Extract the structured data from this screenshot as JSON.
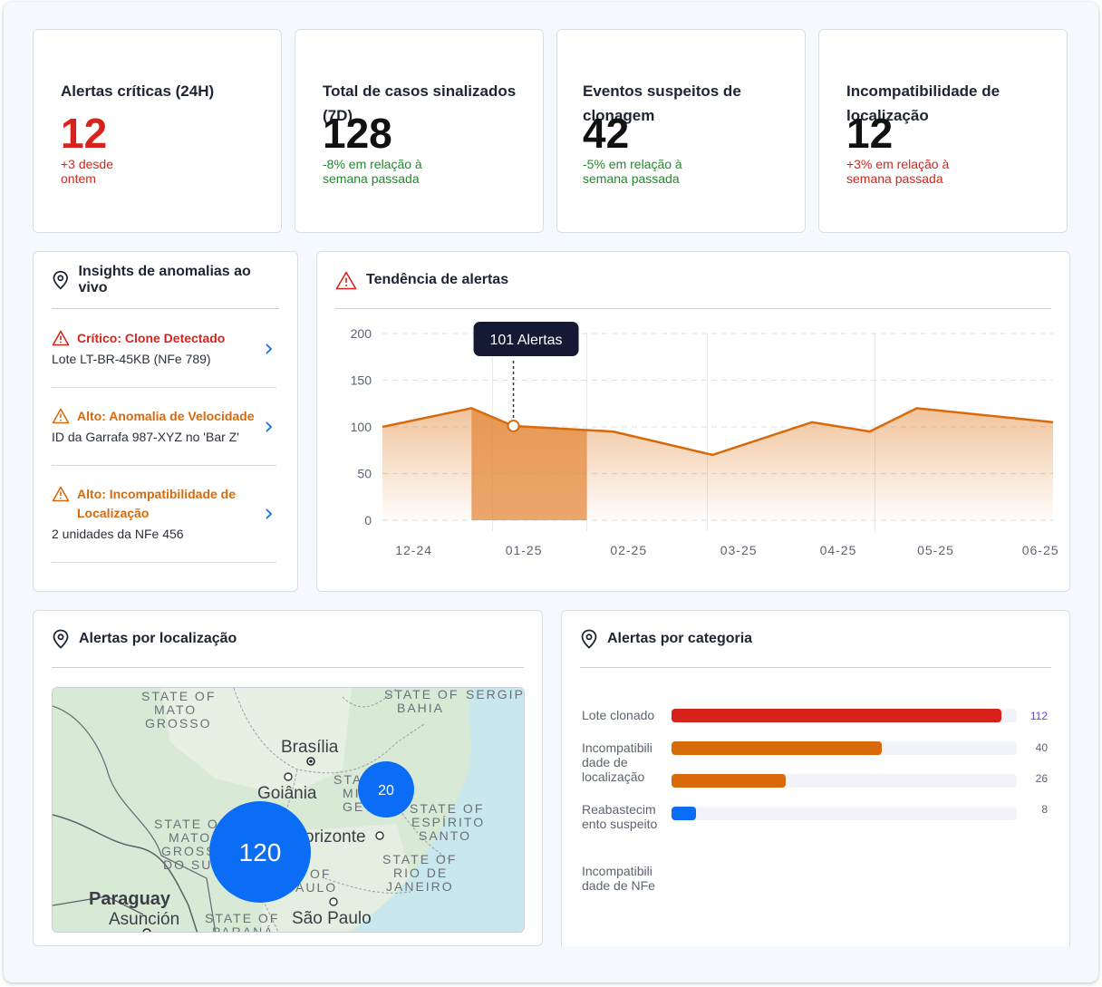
{
  "kpis": [
    {
      "title": "Alertas críticas (24H)",
      "value": "12",
      "delta_line1": "+3 desde",
      "delta_line2": "ontem",
      "delta_color": "#d8231d",
      "value_color": "#d8231d"
    },
    {
      "title": "Total de casos sinalizados (7D)",
      "value": "128",
      "delta_line1": "-8% em relação à",
      "delta_line2": "semana passada",
      "delta_color": "#1f8a2a",
      "value_color": "#111111"
    },
    {
      "title": "Eventos suspeitos de clonagem",
      "value": "42",
      "delta_line1": "-5% em relação à",
      "delta_line2": "semana passada",
      "delta_color": "#1f8a2a",
      "value_color": "#111111"
    },
    {
      "title": "Incompatibilidade de localização",
      "value": "12",
      "delta_line1": "+3% em relação à",
      "delta_line2": "semana passada",
      "delta_color": "#d8231d",
      "value_color": "#111111"
    }
  ],
  "insights": {
    "title": "Insights de anomalias ao vivo",
    "icon": "location-pin-icon",
    "items": [
      {
        "title": "Crítico: Clone Detectado",
        "subtitle": "Lote LT-BR-45KB (NFe 789)",
        "severity_color": "#d8231d"
      },
      {
        "title": "Alto: Anomalia de Velocidade",
        "subtitle": "ID da Garrafa 987-XYZ no 'Bar Z'",
        "severity_color": "#d86a0a"
      },
      {
        "title": "Alto: Incompatibilidade de Localização",
        "subtitle": "2 unidades da NFe 456",
        "severity_color": "#d86a0a"
      }
    ]
  },
  "trend": {
    "title": "Tendência de alertas",
    "icon": "warning-triangle-icon",
    "tooltip": "101 Alertas"
  },
  "chart_data": {
    "type": "area",
    "title": "Tendência de alertas",
    "categories": [
      "12-24",
      "01-25",
      "02-25",
      "03-25",
      "04-25",
      "05-25",
      "06-25"
    ],
    "x": [
      "12-24",
      "01-25",
      "01-25",
      "02-25",
      "03-25",
      "04-25",
      "04-25",
      "05-25",
      "06-25"
    ],
    "x_pos": [
      0,
      0.85,
      1.25,
      2.2,
      3.15,
      4.1,
      4.65,
      5.1,
      6.4
    ],
    "values": [
      100,
      120,
      101,
      95,
      70,
      105,
      95,
      120,
      105
    ],
    "highlight_x_range": [
      0.85,
      1.95
    ],
    "tooltip_point_index": 2,
    "ylim": [
      0,
      200
    ],
    "yticks": [
      0,
      50,
      100,
      150,
      200
    ],
    "grid": true,
    "color": "#d86a0a"
  },
  "location": {
    "title": "Alertas por localização",
    "icon": "location-pin-icon",
    "clusters": [
      {
        "label": "120",
        "color": "#0b6cf6"
      },
      {
        "label": "20",
        "color": "#0b6cf6"
      }
    ],
    "map_labels": {
      "mato_grosso": [
        "STATE OF",
        "MATO",
        "GROSSO"
      ],
      "bahia": [
        "STATE OF",
        "BAHIA"
      ],
      "sergipe": "SERGIPE",
      "brasilia": "Brasília",
      "goiania": "Goiânia",
      "minas": [
        "STA",
        "MI",
        "GE"
      ],
      "espirito_santo": [
        "STATE OF",
        "ESPÍRITO",
        "SANTO"
      ],
      "ms": [
        "STATE OF",
        "MATO",
        "GROSS",
        "DO SU"
      ],
      "horizonte": "orizonte",
      "rio": [
        "STATE OF",
        "RIO DE",
        "JANEIRO"
      ],
      "sp": [
        "OF",
        "AULO"
      ],
      "paraguay": "Paraguay",
      "asuncion": "Asunción",
      "parana": [
        "STATE OF",
        "PARANÁ"
      ],
      "sao_paulo": "São Paulo"
    }
  },
  "category": {
    "title": "Alertas por categoria",
    "icon": "location-pin-icon",
    "bars": [
      {
        "label": "Lote clonado",
        "value": 112,
        "fraction": 0.955,
        "color": "#d8231d",
        "value_color": "#5b4bd6"
      },
      {
        "label": "Incompatibili dade de localização",
        "value": 40,
        "fraction": 0.61,
        "color": "#d86a0a",
        "value_color": "#5b6472"
      },
      {
        "label": "",
        "value": 26,
        "fraction": 0.33,
        "color": "#d86a0a",
        "value_color": "#5b6472"
      },
      {
        "label": "Reabastecim ento suspeito",
        "value": 8,
        "fraction": 0.072,
        "color": "#0b6cf6",
        "value_color": "#5b6472"
      },
      {
        "label": "Incompatibili dade de NFe",
        "value": null,
        "fraction": 0,
        "color": "#0b6cf6",
        "value_color": "#5b6472"
      }
    ]
  }
}
